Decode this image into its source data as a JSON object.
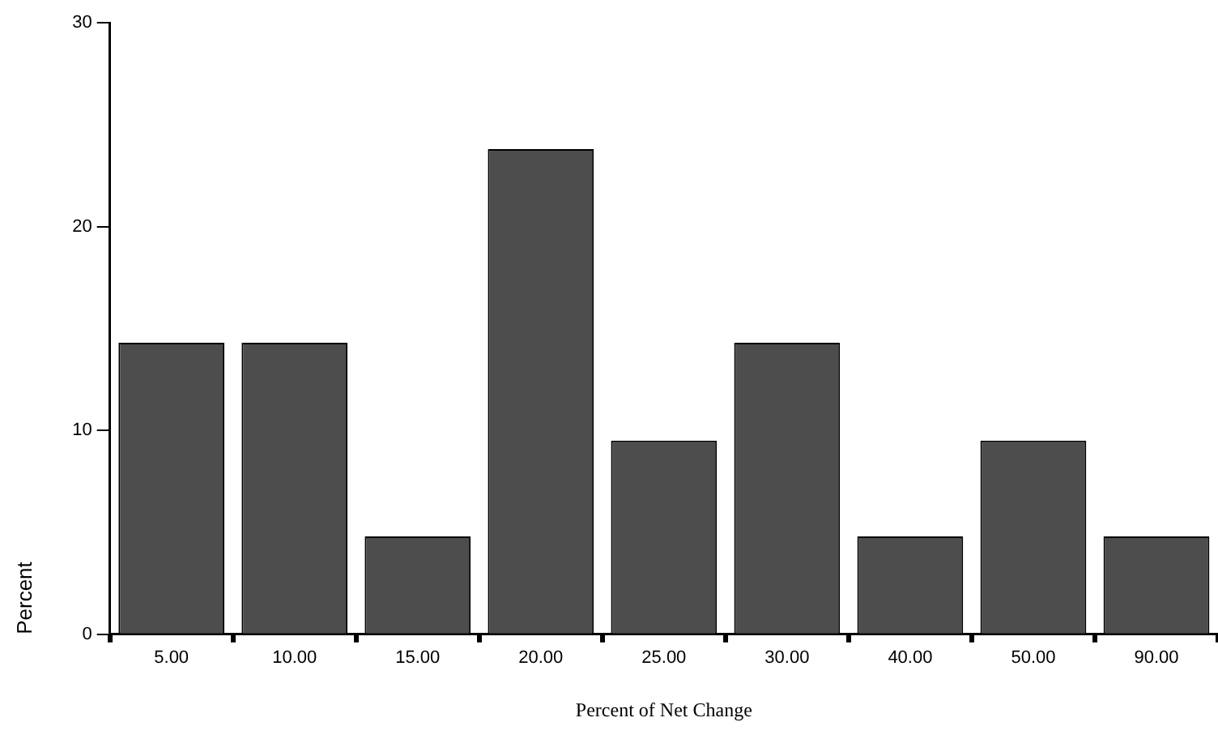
{
  "chart_data": {
    "type": "bar",
    "xlabel": "Percent of Net Change",
    "ylabel": "Percent",
    "categories": [
      "5.00",
      "10.00",
      "15.00",
      "20.00",
      "25.00",
      "30.00",
      "40.00",
      "50.00",
      "90.00"
    ],
    "values": [
      14.3,
      14.3,
      4.8,
      23.8,
      9.5,
      14.3,
      4.8,
      9.5,
      4.8
    ],
    "color": "#4d4d4d",
    "ylim": [
      0,
      30
    ],
    "yticks": [
      0,
      10,
      20,
      30
    ],
    "grid": false,
    "legend": false
  }
}
